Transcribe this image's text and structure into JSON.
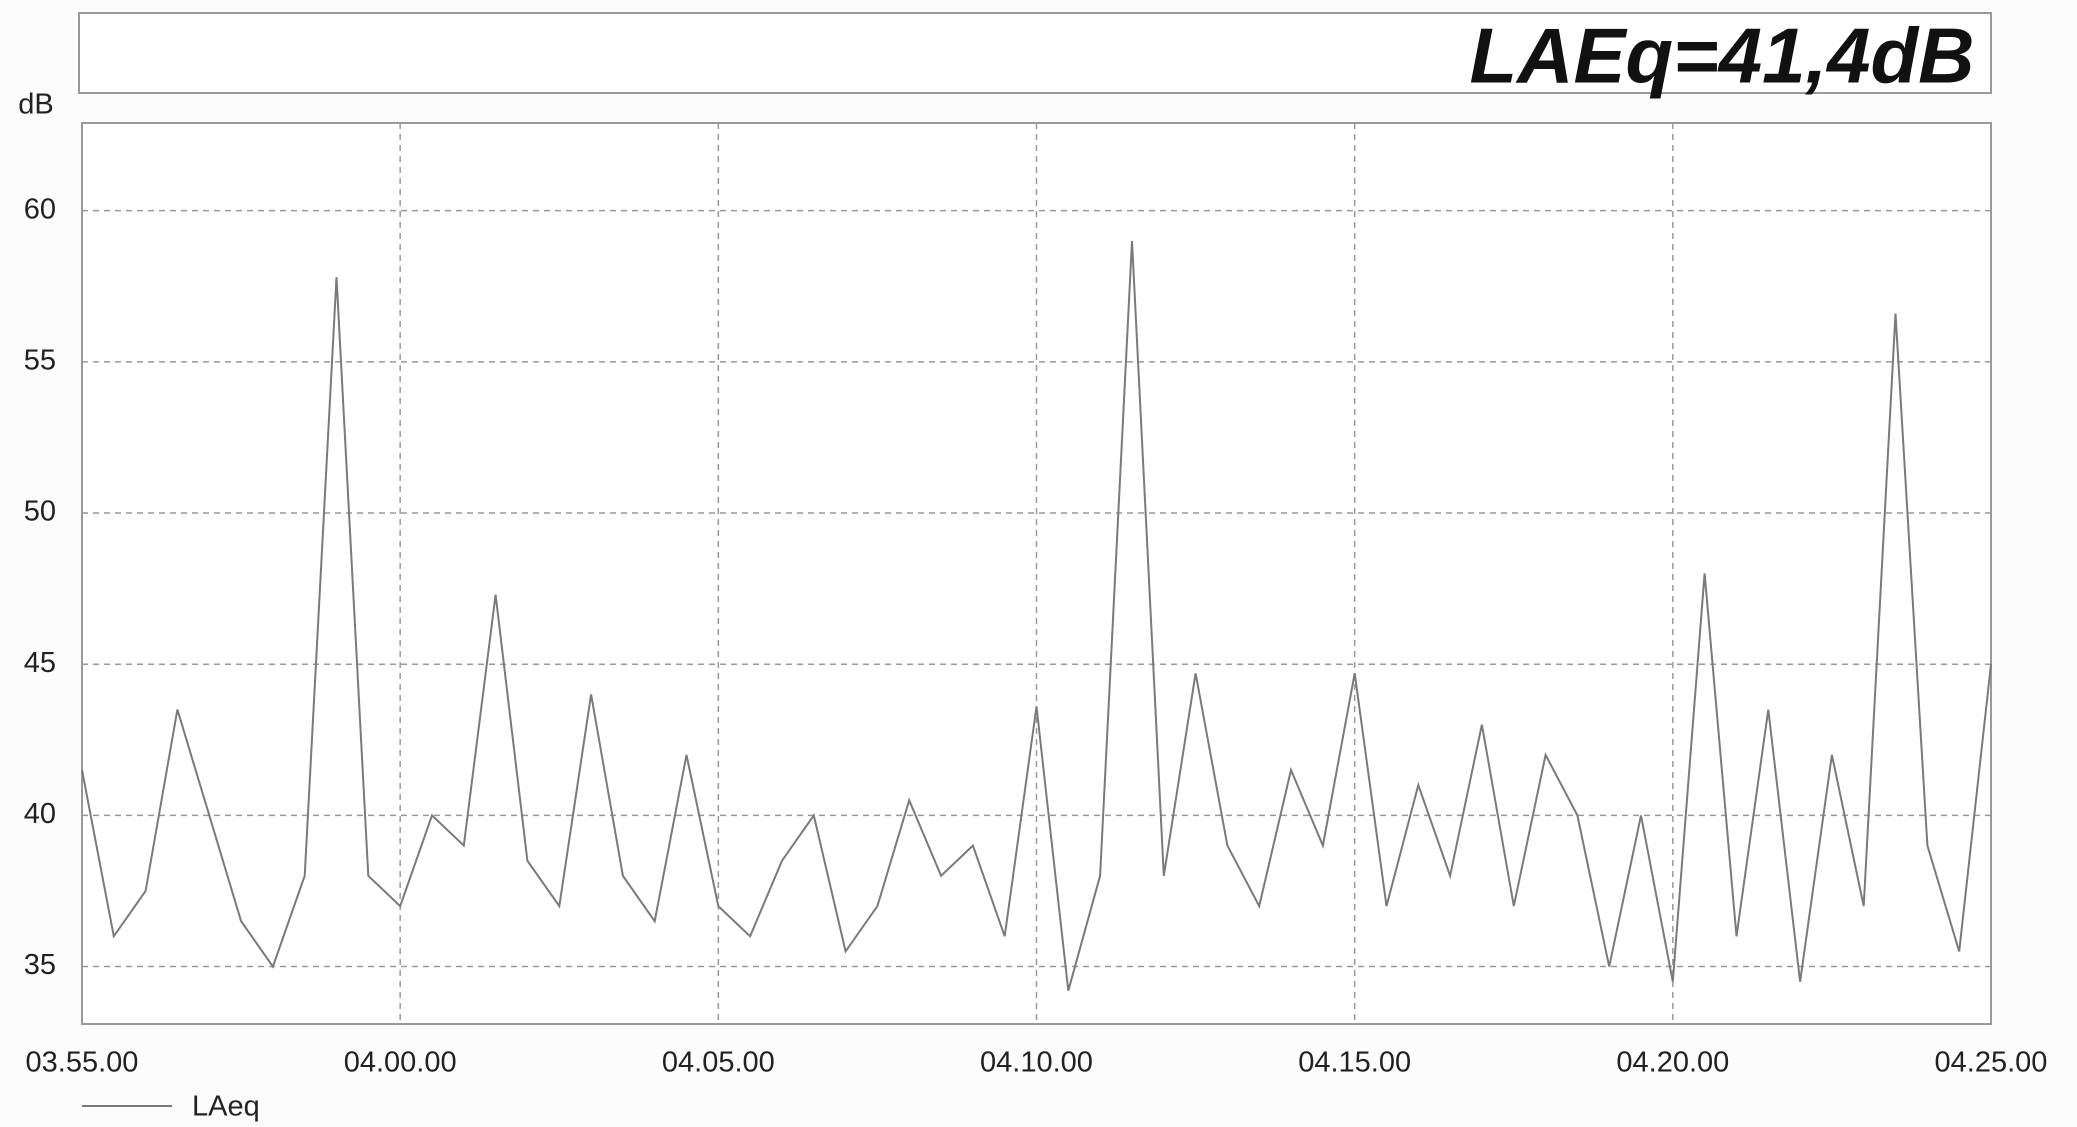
{
  "chart_data": {
    "type": "line",
    "annotation": "LAEq=41,4dB",
    "y_label": "dB",
    "x": [
      235,
      235.5,
      236,
      236.5,
      237,
      237.5,
      238,
      238.5,
      239,
      239.5,
      240,
      240.5,
      241,
      241.5,
      242,
      242.5,
      243,
      243.5,
      244,
      244.5,
      245,
      245.5,
      246,
      246.5,
      247,
      247.5,
      248,
      248.5,
      249,
      249.5,
      250,
      250.5,
      251,
      251.5,
      252,
      252.5,
      253,
      253.5,
      254,
      254.5,
      255,
      255.5,
      256,
      256.5,
      257,
      257.5,
      258,
      258.5,
      259,
      259.5,
      260,
      260.5,
      261,
      261.5,
      262,
      262.5,
      263,
      263.5,
      264,
      264.5,
      265
    ],
    "series": [
      {
        "name": "LAeq",
        "color": "#7a7a7a",
        "values": [
          41.5,
          36,
          37.5,
          43.5,
          40,
          36.5,
          35,
          38,
          57.8,
          38,
          37,
          40,
          39,
          47.3,
          38.5,
          37,
          44,
          38,
          36.5,
          42,
          37,
          36,
          38.5,
          40,
          35.5,
          37,
          40.5,
          38,
          39,
          36,
          43.6,
          34.2,
          38,
          59,
          38,
          44.7,
          39,
          37,
          41.5,
          39,
          44.7,
          37,
          41,
          38,
          43,
          37,
          42,
          40,
          35,
          40,
          34.5,
          48,
          36,
          43.5,
          34.5,
          42,
          37,
          56.6,
          39,
          35.5,
          45
        ]
      }
    ],
    "xlim": [
      235,
      265
    ],
    "xticks": [
      {
        "value": 235,
        "label": "03.55.00"
      },
      {
        "value": 240,
        "label": "04.00.00"
      },
      {
        "value": 245,
        "label": "04.05.00"
      },
      {
        "value": 250,
        "label": "04.10.00"
      },
      {
        "value": 255,
        "label": "04.15.00"
      },
      {
        "value": 260,
        "label": "04.20.00"
      },
      {
        "value": 265,
        "label": "04.25.00"
      }
    ],
    "ylim": [
      33.1,
      62.9
    ],
    "yticks": [
      35,
      40,
      45,
      50,
      55,
      60
    ],
    "grid": true
  }
}
